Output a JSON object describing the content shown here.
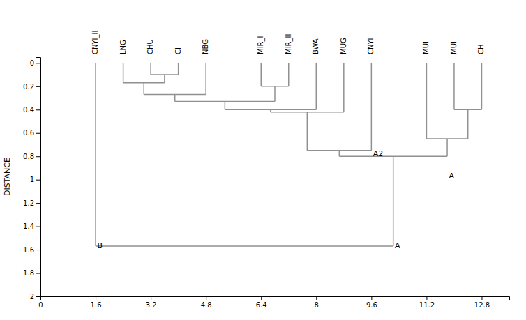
{
  "chart_data": {
    "type": "dendrogram",
    "y_label": "DISTANCE",
    "color": "#909090",
    "leaf_labels": [
      {
        "x": 1.6,
        "text": "CNYI_II"
      },
      {
        "x": 2.4,
        "text": "LNG"
      },
      {
        "x": 3.2,
        "text": "CHU"
      },
      {
        "x": 4.0,
        "text": "CI"
      },
      {
        "x": 4.8,
        "text": "NBG"
      },
      {
        "x": 6.4,
        "text": "MIR_I"
      },
      {
        "x": 7.2,
        "text": "MIR_II"
      },
      {
        "x": 8.0,
        "text": "BWA"
      },
      {
        "x": 8.8,
        "text": "MUG"
      },
      {
        "x": 9.6,
        "text": "CNYI"
      },
      {
        "x": 11.2,
        "text": "MUII"
      },
      {
        "x": 12.0,
        "text": "MUI"
      },
      {
        "x": 12.8,
        "text": "CH"
      }
    ],
    "segments": [
      {
        "x": [
          3.2,
          3.2
        ],
        "y": [
          0.0,
          0.1
        ]
      },
      {
        "x": [
          4.0,
          4.0
        ],
        "y": [
          0.0,
          0.1
        ]
      },
      {
        "x": [
          3.2,
          4.0
        ],
        "y": [
          0.1,
          0.1
        ]
      },
      {
        "x": [
          2.4,
          2.4
        ],
        "y": [
          0.0,
          0.17
        ]
      },
      {
        "x": [
          3.6,
          3.6
        ],
        "y": [
          0.1,
          0.17
        ]
      },
      {
        "x": [
          2.4,
          3.6
        ],
        "y": [
          0.17,
          0.17
        ]
      },
      {
        "x": [
          3.0,
          3.0
        ],
        "y": [
          0.17,
          0.27
        ]
      },
      {
        "x": [
          4.8,
          4.8
        ],
        "y": [
          0.0,
          0.27
        ]
      },
      {
        "x": [
          3.0,
          4.8
        ],
        "y": [
          0.27,
          0.27
        ]
      },
      {
        "x": [
          6.4,
          6.4
        ],
        "y": [
          0.0,
          0.2
        ]
      },
      {
        "x": [
          7.2,
          7.2
        ],
        "y": [
          0.0,
          0.2
        ]
      },
      {
        "x": [
          6.4,
          7.2
        ],
        "y": [
          0.2,
          0.2
        ]
      },
      {
        "x": [
          3.9,
          3.9
        ],
        "y": [
          0.27,
          0.33
        ]
      },
      {
        "x": [
          6.8,
          6.8
        ],
        "y": [
          0.2,
          0.33
        ]
      },
      {
        "x": [
          3.9,
          6.8
        ],
        "y": [
          0.33,
          0.33
        ]
      },
      {
        "x": [
          5.35,
          5.35
        ],
        "y": [
          0.33,
          0.4
        ]
      },
      {
        "x": [
          8.0,
          8.0
        ],
        "y": [
          0.0,
          0.4
        ]
      },
      {
        "x": [
          5.35,
          8.0
        ],
        "y": [
          0.4,
          0.4
        ]
      },
      {
        "x": [
          6.675,
          6.675
        ],
        "y": [
          0.4,
          0.42
        ]
      },
      {
        "x": [
          8.8,
          8.8
        ],
        "y": [
          0.0,
          0.42
        ]
      },
      {
        "x": [
          6.675,
          8.8
        ],
        "y": [
          0.42,
          0.42
        ]
      },
      {
        "x": [
          7.7375,
          7.7375
        ],
        "y": [
          0.42,
          0.75
        ]
      },
      {
        "x": [
          9.6,
          9.6
        ],
        "y": [
          0.0,
          0.75
        ]
      },
      {
        "x": [
          7.7375,
          9.6
        ],
        "y": [
          0.75,
          0.75
        ]
      },
      {
        "x": [
          12.0,
          12.0
        ],
        "y": [
          0.0,
          0.4
        ]
      },
      {
        "x": [
          12.8,
          12.8
        ],
        "y": [
          0.0,
          0.4
        ]
      },
      {
        "x": [
          12.0,
          12.8
        ],
        "y": [
          0.4,
          0.4
        ]
      },
      {
        "x": [
          11.2,
          11.2
        ],
        "y": [
          0.0,
          0.65
        ]
      },
      {
        "x": [
          12.4,
          12.4
        ],
        "y": [
          0.4,
          0.65
        ]
      },
      {
        "x": [
          11.2,
          12.4
        ],
        "y": [
          0.65,
          0.65
        ]
      },
      {
        "x": [
          8.66875,
          8.66875
        ],
        "y": [
          0.75,
          0.8
        ]
      },
      {
        "x": [
          11.8,
          11.8
        ],
        "y": [
          0.65,
          0.8
        ]
      },
      {
        "x": [
          8.66875,
          11.8
        ],
        "y": [
          0.8,
          0.8
        ]
      },
      {
        "x": [
          1.6,
          1.6
        ],
        "y": [
          0.0,
          1.57
        ]
      },
      {
        "x": [
          10.234375,
          10.234375
        ],
        "y": [
          0.8,
          1.57
        ]
      },
      {
        "x": [
          1.6,
          10.234375
        ],
        "y": [
          1.57,
          1.57
        ]
      }
    ],
    "annotations": [
      {
        "x": 9.65,
        "y": 0.78,
        "text": "A2"
      },
      {
        "x": 11.85,
        "y": 0.97,
        "text": "A"
      },
      {
        "x": 1.65,
        "y": 1.57,
        "text": "B"
      },
      {
        "x": 10.28,
        "y": 1.57,
        "text": "A"
      }
    ],
    "xlim": [
      0,
      13.6
    ],
    "ylim": [
      2.0,
      -0.05
    ],
    "xticks": [
      0,
      1.6,
      3.2,
      4.8,
      6.4,
      8.0,
      9.6,
      11.2,
      12.8
    ],
    "yticks": [
      0,
      0.2,
      0.4,
      0.6,
      0.8,
      1.0,
      1.2,
      1.4,
      1.6,
      1.8,
      2.0
    ]
  }
}
